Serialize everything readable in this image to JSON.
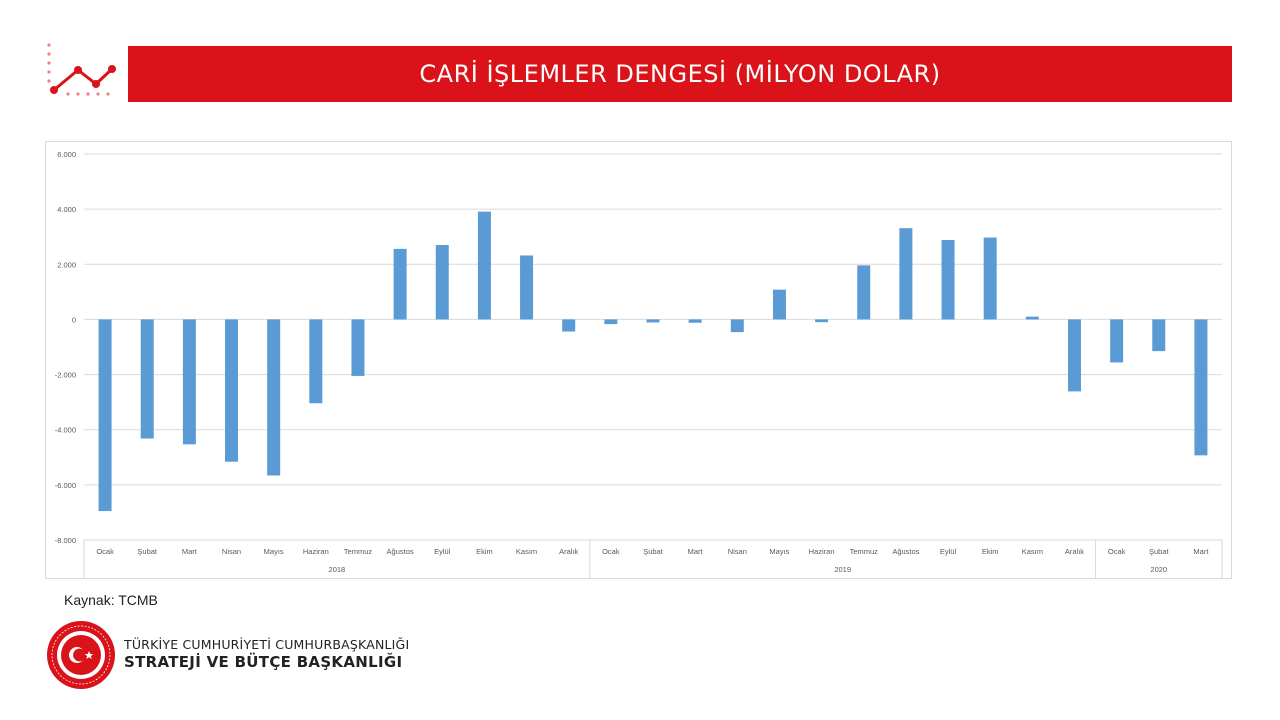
{
  "header": {
    "title": "CARİ İŞLEMLER DENGESİ (MİLYON DOLAR)",
    "accent_color": "#da1219",
    "icon": "line-trend-icon"
  },
  "chart_data": {
    "type": "bar",
    "bar_color": "#5b9bd5",
    "grid": true,
    "ylim": [
      -8000,
      6000
    ],
    "yticks": [
      6000,
      4000,
      2000,
      0,
      -2000,
      -4000,
      -6000,
      -8000
    ],
    "ytick_labels": [
      "6.000",
      "4.000",
      "2.000",
      "0",
      "-2.000",
      "-4.000",
      "-6.000",
      "-8.000"
    ],
    "categories": [
      "Ocak",
      "Şubat",
      "Mart",
      "Nisan",
      "Mayıs",
      "Haziran",
      "Temmuz",
      "Ağustos",
      "Eylül",
      "Ekim",
      "Kasım",
      "Aralık",
      "Ocak",
      "Şubat",
      "Mart",
      "Nisan",
      "Mayıs",
      "Haziran",
      "Temmuz",
      "Ağustos",
      "Eylül",
      "Ekim",
      "Kasım",
      "Aralık",
      "Ocak",
      "Şubat",
      "Mart"
    ],
    "groups": [
      {
        "label": "2018",
        "count": 12
      },
      {
        "label": "2019",
        "count": 12
      },
      {
        "label": "2020",
        "count": 3
      }
    ],
    "values": [
      -6950,
      -4320,
      -4530,
      -5160,
      -5660,
      -3040,
      -2050,
      2560,
      2700,
      3910,
      2320,
      -440,
      -170,
      -110,
      -120,
      -460,
      1080,
      -100,
      1960,
      3310,
      2880,
      2970,
      100,
      -2610,
      -1560,
      -1150,
      -4930
    ]
  },
  "source": "Kaynak: TCMB",
  "organization": {
    "line1": "TÜRKİYE CUMHURİYETİ CUMHURBAŞKANLIĞI",
    "line2": "STRATEJİ VE BÜTÇE BAŞKANLIĞI",
    "logo_text": "T.C. CUMHURBAŞKANLIĞI STRATEJİ VE BÜTÇE BAŞKANLIĞI",
    "logo_color": "#da1219"
  }
}
